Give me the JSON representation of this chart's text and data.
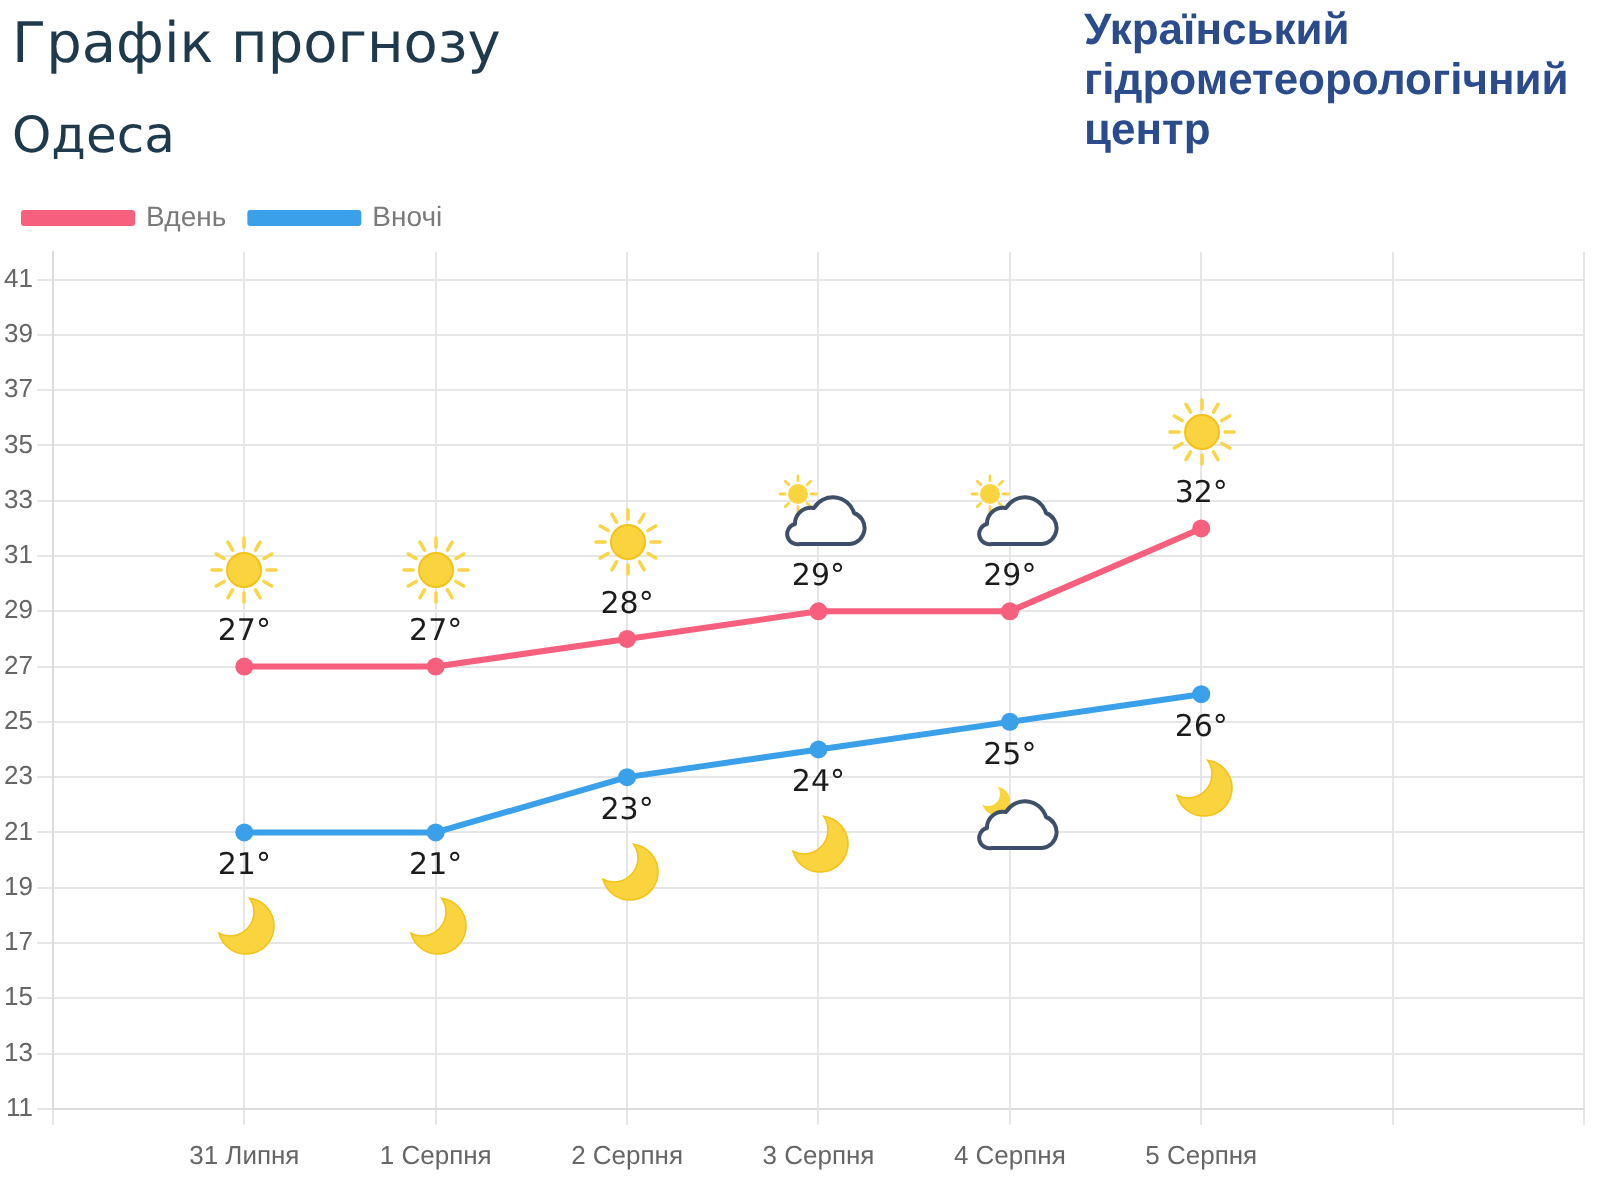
{
  "chart_data": {
    "type": "line",
    "title": "Графік прогнозу",
    "subtitle": "Одеса",
    "annotations": [
      "Український гідрометеорологічний центр"
    ],
    "categories": [
      null,
      "31 Липня",
      "1 Серпня",
      "2 Серпня",
      "3 Серпня",
      "4 Серпня",
      "5 Серпня",
      null,
      null
    ],
    "series": [
      {
        "name": "Вдень",
        "color": "#f6607e",
        "values": [
          null,
          27,
          27,
          28,
          29,
          29,
          32,
          null,
          null
        ],
        "value_labels": [
          null,
          "27°",
          "27°",
          "28°",
          "29°",
          "29°",
          "32°",
          null,
          null
        ]
      },
      {
        "name": "Вночі",
        "color": "#3aa0ea",
        "values": [
          null,
          21,
          21,
          23,
          24,
          25,
          26,
          null,
          null
        ],
        "value_labels": [
          null,
          "21°",
          "21°",
          "23°",
          "24°",
          "25°",
          "26°",
          null,
          null
        ]
      }
    ],
    "ylim": [
      11,
      42
    ],
    "yticks": [
      11,
      13,
      15,
      17,
      19,
      21,
      23,
      25,
      27,
      29,
      31,
      33,
      35,
      37,
      39,
      41
    ],
    "grid": true,
    "legend": "top left",
    "marker": "circle",
    "line_style": "solid"
  }
}
